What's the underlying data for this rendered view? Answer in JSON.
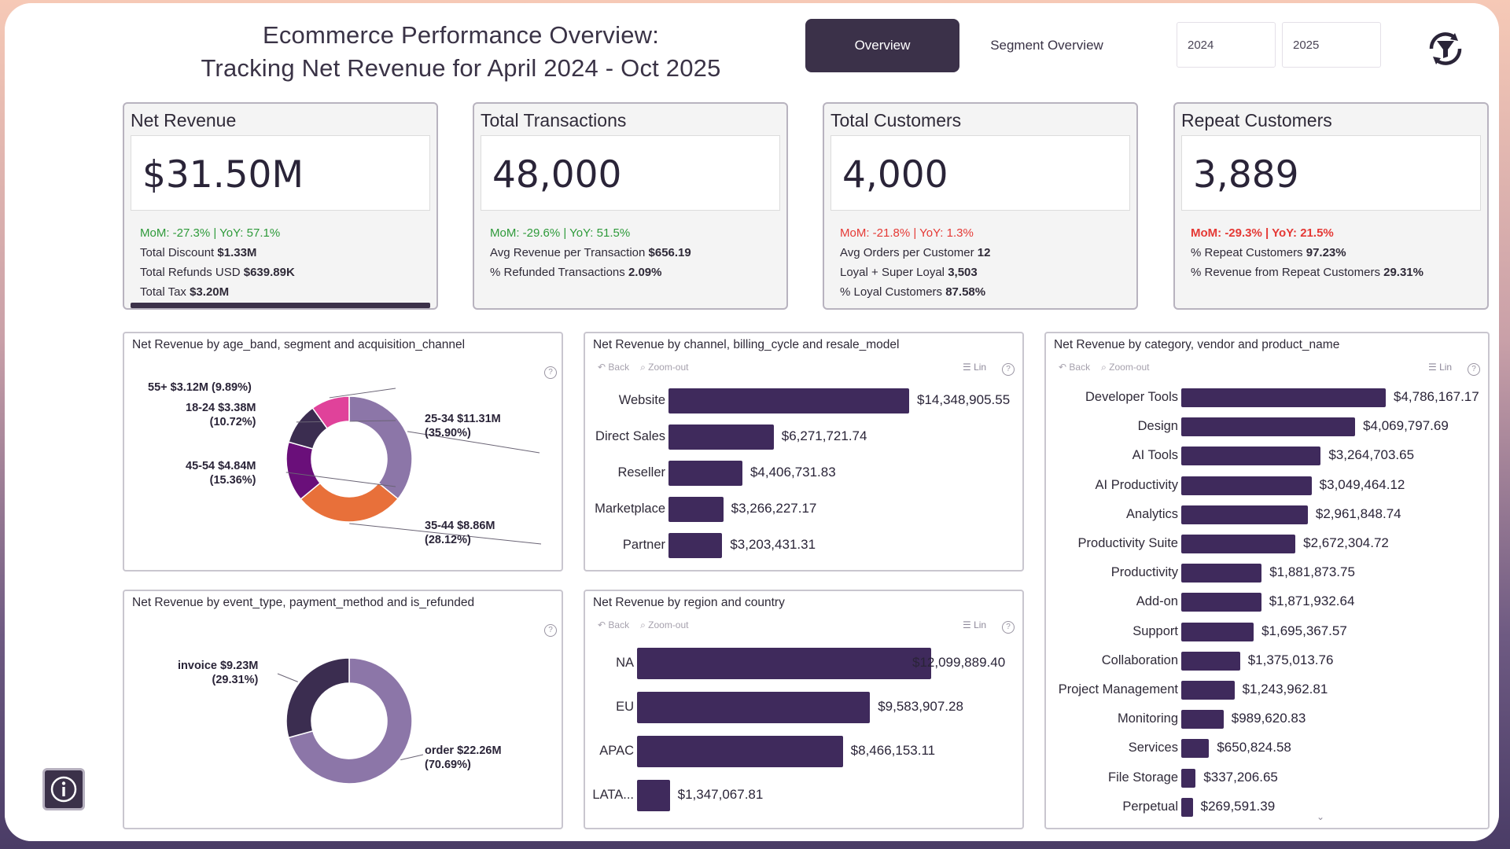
{
  "header": {
    "title_line1": "Ecommerce Performance Overview:",
    "title_line2": "Tracking Net Revenue for April 2024 - Oct 2025",
    "tabs": [
      "Overview",
      "Segment Overview"
    ],
    "years": [
      "2024",
      "2025"
    ],
    "logo_icon": "funnel-icon"
  },
  "kpis": [
    {
      "title": "Net Revenue",
      "value": "$31.50M",
      "mom_yoy": "MoM: -27.3% | YoY: 57.1%",
      "trend_color": "#2e9a3a",
      "lines": [
        [
          "Total Discount ",
          "$1.33M"
        ],
        [
          "Total Refunds USD ",
          "$639.89K"
        ],
        [
          "Total Tax ",
          "$3.20M"
        ]
      ]
    },
    {
      "title": "Total Transactions",
      "value": "48,000",
      "mom_yoy": "MoM: -29.6% | YoY: 51.5%",
      "trend_color": "#2e9a3a",
      "lines": [
        [
          "Avg Revenue per Transaction ",
          "$656.19"
        ],
        [
          "% Refunded Transactions ",
          "2.09%"
        ]
      ]
    },
    {
      "title": "Total Customers",
      "value": "4,000",
      "mom_yoy": "MoM: -21.8% | YoY: 1.3%",
      "trend_color": "#e53935",
      "lines": [
        [
          "Avg Orders per Customer ",
          "12"
        ],
        [
          "Loyal + Super Loyal ",
          "3,503"
        ],
        [
          "% Loyal Customers ",
          "87.58%"
        ]
      ]
    },
    {
      "title": "Repeat Customers",
      "value": "3,889",
      "mom_yoy": "MoM: -29.3% | YoY: 21.5%",
      "trend_color": "#e53935",
      "lines": [
        [
          "% Repeat Customers ",
          "97.23%"
        ],
        [
          "% Revenue from Repeat Customers ",
          "29.31%"
        ]
      ]
    }
  ],
  "toolbar": {
    "back": "Back",
    "zoom": "Zoom-out",
    "lin": "Lin"
  },
  "chart_data": [
    {
      "type": "pie",
      "title": "Net Revenue by age_band, segment and acquisition_channel",
      "slices": [
        {
          "label": "25-34",
          "value_text": "$11.31M",
          "pct_text": "(35.90%)",
          "pct": 35.9,
          "color": "#8c76a8"
        },
        {
          "label": "35-44",
          "value_text": "$8.86M",
          "pct_text": "(28.12%)",
          "pct": 28.12,
          "color": "#e8703a"
        },
        {
          "label": "45-54",
          "value_text": "$4.84M",
          "pct_text": "(15.36%)",
          "pct": 15.36,
          "color": "#6a0f7a"
        },
        {
          "label": "18-24",
          "value_text": "$3.38M",
          "pct_text": "(10.72%)",
          "pct": 10.72,
          "color": "#3b2d50"
        },
        {
          "label": "55+",
          "value_text": "$3.12M",
          "pct_text": "(9.89%)",
          "pct": 9.89,
          "color": "#e0429a"
        }
      ]
    },
    {
      "type": "pie",
      "title": "Net Revenue by event_type, payment_method and is_refunded",
      "slices": [
        {
          "label": "order",
          "value_text": "$22.26M",
          "pct_text": "(70.69%)",
          "pct": 70.69,
          "color": "#8c76a8"
        },
        {
          "label": "invoice",
          "value_text": "$9.23M",
          "pct_text": "(29.31%)",
          "pct": 29.31,
          "color": "#3b2d50"
        }
      ]
    },
    {
      "type": "bar",
      "title": "Net Revenue by channel, billing_cycle and resale_model",
      "categories": [
        "Website",
        "Direct Sales",
        "Reseller",
        "Marketplace",
        "Partner"
      ],
      "values": [
        14348905.55,
        6271721.74,
        4406731.83,
        3266227.17,
        3203431.31
      ],
      "labels": [
        "$14,348,905.55",
        "$6,271,721.74",
        "$4,406,731.83",
        "$3,266,227.17",
        "$3,203,431.31"
      ]
    },
    {
      "type": "bar",
      "title": "Net Revenue by region and country",
      "categories": [
        "NA",
        "EU",
        "APAC",
        "LATA..."
      ],
      "values": [
        12099889.4,
        9583907.28,
        8466153.11,
        1347067.81
      ],
      "labels": [
        "$12,099,889.40",
        "$9,583,907.28",
        "$8,466,153.11",
        "$1,347,067.81"
      ]
    },
    {
      "type": "bar",
      "title": "Net Revenue by category, vendor and product_name",
      "categories": [
        "Developer Tools",
        "Design",
        "AI Tools",
        "AI Productivity",
        "Analytics",
        "Productivity Suite",
        "Productivity",
        "Add-on",
        "Support",
        "Collaboration",
        "Project Management",
        "Monitoring",
        "Services",
        "File Storage",
        "Perpetual"
      ],
      "values": [
        4786167.17,
        4069797.69,
        3264703.65,
        3049464.12,
        2961848.74,
        2672304.72,
        1881873.75,
        1871932.64,
        1695367.57,
        1375013.76,
        1243962.81,
        989620.83,
        650824.58,
        337206.65,
        269591.39
      ],
      "labels": [
        "$4,786,167.17",
        "$4,069,797.69",
        "$3,264,703.65",
        "$3,049,464.12",
        "$2,961,848.74",
        "$2,672,304.72",
        "$1,881,873.75",
        "$1,871,932.64",
        "$1,695,367.57",
        "$1,375,013.76",
        "$1,243,962.81",
        "$989,620.83",
        "$650,824.58",
        "$337,206.65",
        "$269,591.39"
      ]
    }
  ],
  "bar_color": "#3f2a5c",
  "info_icon": "info-icon"
}
